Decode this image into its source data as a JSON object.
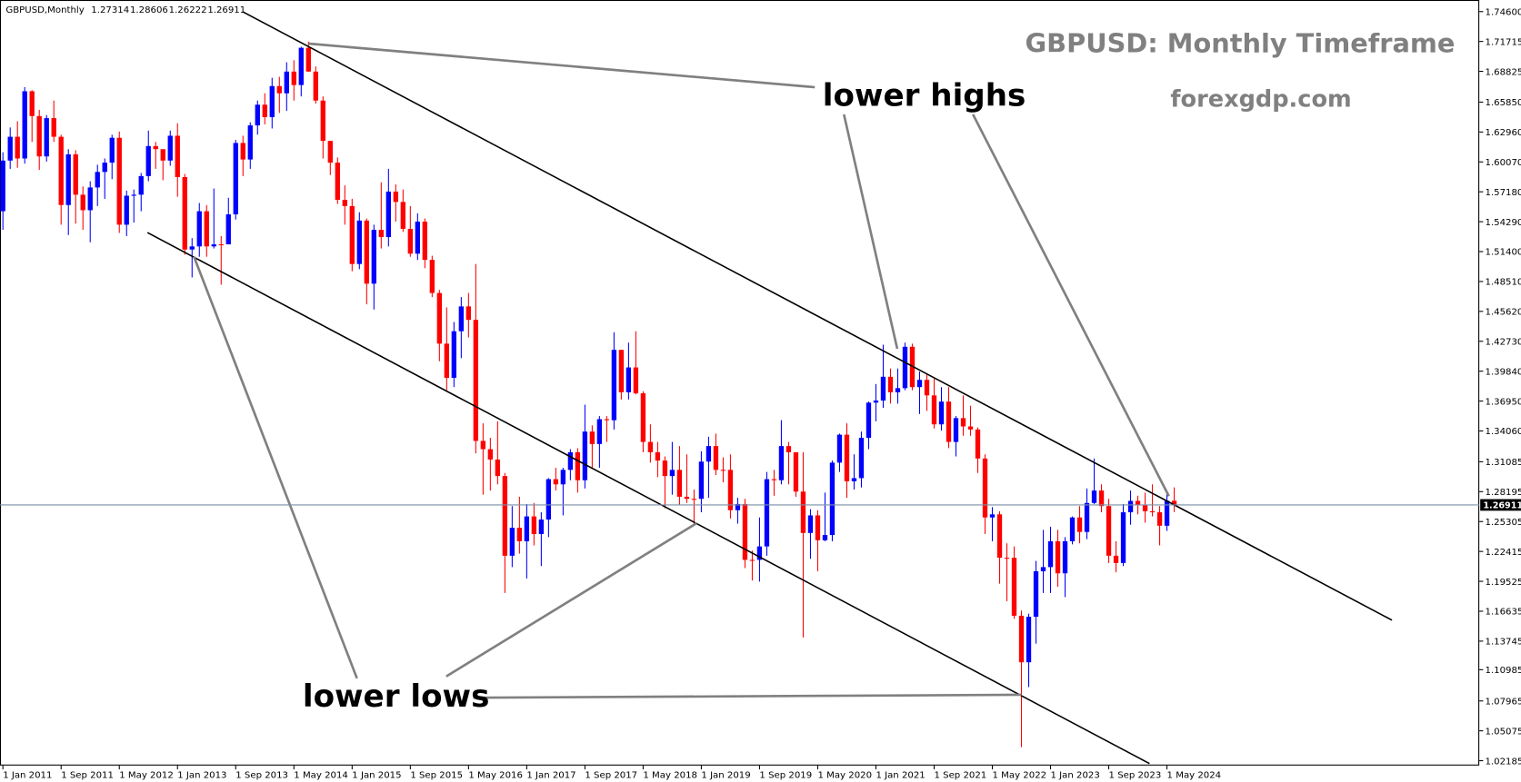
{
  "chart_data": {
    "type": "candlestick",
    "header": "GBPUSD,Monthly",
    "title": "GBPUSD: Monthly Timeframe",
    "subtitle": "forexgdp.com",
    "annotations": [
      "lower highs",
      "lower lows"
    ],
    "up_color": "#0000ff",
    "down_color": "#ff0000",
    "price_line_color": "#7a8fa6",
    "ylim": [
      1.0172,
      1.7572
    ],
    "yticks": [
      {
        "value": 1.746,
        "label": "1.74600"
      },
      {
        "value": 1.71715,
        "label": "1.71715"
      },
      {
        "value": 1.68825,
        "label": "1.68825"
      },
      {
        "value": 1.6585,
        "label": "1.65850"
      },
      {
        "value": 1.6296,
        "label": "1.62960"
      },
      {
        "value": 1.6007,
        "label": "1.60070"
      },
      {
        "value": 1.5718,
        "label": "1.57180"
      },
      {
        "value": 1.5429,
        "label": "1.54290"
      },
      {
        "value": 1.514,
        "label": "1.51400"
      },
      {
        "value": 1.4851,
        "label": "1.48510"
      },
      {
        "value": 1.4562,
        "label": "1.45620"
      },
      {
        "value": 1.4273,
        "label": "1.42730"
      },
      {
        "value": 1.3984,
        "label": "1.39840"
      },
      {
        "value": 1.3695,
        "label": "1.36950"
      },
      {
        "value": 1.3406,
        "label": "1.34060"
      },
      {
        "value": 1.31085,
        "label": "1.31085"
      },
      {
        "value": 1.28195,
        "label": "1.28195"
      },
      {
        "value": 1.25305,
        "label": "1.25305"
      },
      {
        "value": 1.22415,
        "label": "1.22415"
      },
      {
        "value": 1.19525,
        "label": "1.19525"
      },
      {
        "value": 1.16635,
        "label": "1.16635"
      },
      {
        "value": 1.13745,
        "label": "1.13745"
      },
      {
        "value": 1.10985,
        "label": "1.10985"
      },
      {
        "value": 1.07965,
        "label": "1.07965"
      },
      {
        "value": 1.05075,
        "label": "1.05075"
      },
      {
        "value": 1.02185,
        "label": "1.02185"
      }
    ],
    "categories": [
      "1 Jan 2011",
      null,
      null,
      null,
      null,
      null,
      null,
      null,
      "1 Sep 2011",
      null,
      null,
      null,
      null,
      null,
      null,
      null,
      "1 May 2012",
      null,
      null,
      null,
      null,
      null,
      null,
      null,
      "1 Jan 2013",
      null,
      null,
      null,
      null,
      null,
      null,
      null,
      "1 Sep 2013",
      null,
      null,
      null,
      null,
      null,
      null,
      null,
      "1 May 2014",
      null,
      null,
      null,
      null,
      null,
      null,
      null,
      "1 Jan 2015",
      null,
      null,
      null,
      null,
      null,
      null,
      null,
      "1 Sep 2015",
      null,
      null,
      null,
      null,
      null,
      null,
      null,
      "1 May 2016",
      null,
      null,
      null,
      null,
      null,
      null,
      null,
      "1 Jan 2017",
      null,
      null,
      null,
      null,
      null,
      null,
      null,
      "1 Sep 2017",
      null,
      null,
      null,
      null,
      null,
      null,
      null,
      "1 May 2018",
      null,
      null,
      null,
      null,
      null,
      null,
      null,
      "1 Jan 2019",
      null,
      null,
      null,
      null,
      null,
      null,
      null,
      "1 Sep 2019",
      null,
      null,
      null,
      null,
      null,
      null,
      null,
      "1 May 2020",
      null,
      null,
      null,
      null,
      null,
      null,
      null,
      "1 Jan 2021",
      null,
      null,
      null,
      null,
      null,
      null,
      null,
      "1 Sep 2021",
      null,
      null,
      null,
      null,
      null,
      null,
      null,
      "1 May 2022",
      null,
      null,
      null,
      null,
      null,
      null,
      null,
      "1 Jan 2023",
      null,
      null,
      null,
      null,
      null,
      null,
      null,
      "1 Sep 2023",
      null,
      null,
      null,
      null,
      null,
      null,
      null,
      "1 May 2024",
      null
    ],
    "open": [
      1.553,
      1.602,
      1.625,
      1.604,
      1.669,
      1.645,
      1.606,
      1.643,
      1.625,
      1.559,
      1.608,
      1.569,
      1.554,
      1.576,
      1.591,
      1.6,
      1.624,
      1.54,
      1.568,
      1.569,
      1.587,
      1.616,
      1.613,
      1.602,
      1.626,
      1.586,
      1.516,
      1.519,
      1.553,
      1.519,
      1.521,
      1.521,
      1.55,
      1.619,
      1.603,
      1.636,
      1.656,
      1.644,
      1.674,
      1.667,
      1.688,
      1.675,
      1.711,
      1.688,
      1.66,
      1.621,
      1.6,
      1.564,
      1.558,
      1.502,
      1.544,
      1.483,
      1.535,
      1.528,
      1.572,
      1.562,
      1.536,
      1.512,
      1.543,
      1.506,
      1.474,
      1.425,
      1.392,
      1.437,
      1.461,
      1.448,
      1.331,
      1.323,
      1.313,
      1.297,
      1.22,
      1.247,
      1.234,
      1.258,
      1.241,
      1.255,
      1.294,
      1.289,
      1.303,
      1.32,
      1.293,
      1.34,
      1.328,
      1.352,
      1.351,
      1.419,
      1.378,
      1.402,
      1.377,
      1.33,
      1.32,
      1.312,
      1.297,
      1.303,
      1.277,
      1.275,
      1.275,
      1.311,
      1.326,
      1.303,
      1.303,
      1.264,
      1.27,
      1.216,
      1.216,
      1.229,
      1.294,
      1.293,
      1.326,
      1.32,
      1.282,
      1.242,
      1.259,
      1.235,
      1.24,
      1.31,
      1.337,
      1.292,
      1.295,
      1.334,
      1.368,
      1.37,
      1.393,
      1.378,
      1.382,
      1.422,
      1.383,
      1.39,
      1.375,
      1.347,
      1.369,
      1.33,
      1.353,
      1.345,
      1.342,
      1.314,
      1.257,
      1.26,
      1.218,
      1.218,
      1.162,
      1.117,
      1.161,
      1.205,
      1.209,
      1.234,
      1.203,
      1.234,
      1.257,
      1.243,
      1.271,
      1.283,
      1.268,
      1.22,
      1.213,
      1.262,
      1.273,
      1.269,
      1.263,
      1.262,
      1.249,
      1.27314
    ],
    "high": [
      1.61,
      1.634,
      1.64,
      1.673,
      1.67,
      1.651,
      1.646,
      1.66,
      1.627,
      1.613,
      1.612,
      1.577,
      1.582,
      1.598,
      1.604,
      1.627,
      1.63,
      1.573,
      1.574,
      1.59,
      1.631,
      1.62,
      1.612,
      1.631,
      1.638,
      1.589,
      1.527,
      1.561,
      1.559,
      1.575,
      1.529,
      1.566,
      1.622,
      1.626,
      1.639,
      1.66,
      1.667,
      1.682,
      1.683,
      1.697,
      1.699,
      1.712,
      1.717,
      1.693,
      1.664,
      1.621,
      1.605,
      1.578,
      1.565,
      1.552,
      1.546,
      1.54,
      1.581,
      1.594,
      1.579,
      1.574,
      1.558,
      1.551,
      1.546,
      1.51,
      1.477,
      1.46,
      1.446,
      1.47,
      1.474,
      1.502,
      1.348,
      1.334,
      1.35,
      1.3,
      1.268,
      1.277,
      1.27,
      1.271,
      1.262,
      1.295,
      1.305,
      1.305,
      1.323,
      1.324,
      1.366,
      1.346,
      1.355,
      1.355,
      1.436,
      1.419,
      1.426,
      1.437,
      1.379,
      1.347,
      1.33,
      1.316,
      1.33,
      1.326,
      1.318,
      1.284,
      1.321,
      1.335,
      1.338,
      1.315,
      1.318,
      1.276,
      1.275,
      1.225,
      1.257,
      1.301,
      1.303,
      1.351,
      1.33,
      1.32,
      1.32,
      1.265,
      1.264,
      1.281,
      1.312,
      1.338,
      1.348,
      1.318,
      1.34,
      1.369,
      1.386,
      1.424,
      1.401,
      1.401,
      1.426,
      1.425,
      1.398,
      1.395,
      1.391,
      1.383,
      1.383,
      1.355,
      1.375,
      1.365,
      1.344,
      1.318,
      1.267,
      1.263,
      1.232,
      1.229,
      1.167,
      1.164,
      1.215,
      1.245,
      1.248,
      1.245,
      1.238,
      1.258,
      1.268,
      1.285,
      1.314,
      1.289,
      1.275,
      1.234,
      1.27,
      1.283,
      1.278,
      1.281,
      1.289,
      1.268,
      1.281,
      1.28606
    ],
    "low": [
      1.535,
      1.594,
      1.595,
      1.599,
      1.62,
      1.593,
      1.601,
      1.62,
      1.54,
      1.53,
      1.541,
      1.535,
      1.523,
      1.558,
      1.565,
      1.584,
      1.532,
      1.529,
      1.542,
      1.553,
      1.582,
      1.594,
      1.583,
      1.597,
      1.567,
      1.511,
      1.489,
      1.509,
      1.509,
      1.517,
      1.482,
      1.521,
      1.545,
      1.587,
      1.594,
      1.627,
      1.637,
      1.633,
      1.648,
      1.65,
      1.66,
      1.664,
      1.688,
      1.657,
      1.604,
      1.588,
      1.56,
      1.54,
      1.495,
      1.497,
      1.463,
      1.458,
      1.517,
      1.519,
      1.543,
      1.533,
      1.509,
      1.506,
      1.498,
      1.47,
      1.408,
      1.38,
      1.383,
      1.411,
      1.431,
      1.319,
      1.279,
      1.283,
      1.289,
      1.184,
      1.209,
      1.222,
      1.198,
      1.23,
      1.21,
      1.238,
      1.283,
      1.259,
      1.293,
      1.281,
      1.285,
      1.305,
      1.305,
      1.33,
      1.342,
      1.371,
      1.371,
      1.376,
      1.32,
      1.31,
      1.296,
      1.266,
      1.279,
      1.269,
      1.271,
      1.249,
      1.262,
      1.276,
      1.298,
      1.291,
      1.256,
      1.251,
      1.208,
      1.196,
      1.195,
      1.22,
      1.278,
      1.289,
      1.289,
      1.277,
      1.141,
      1.217,
      1.205,
      1.234,
      1.234,
      1.301,
      1.276,
      1.284,
      1.286,
      1.323,
      1.35,
      1.363,
      1.367,
      1.367,
      1.38,
      1.38,
      1.357,
      1.36,
      1.343,
      1.341,
      1.324,
      1.316,
      1.336,
      1.336,
      1.3,
      1.241,
      1.234,
      1.193,
      1.176,
      1.159,
      1.035,
      1.093,
      1.135,
      1.184,
      1.184,
      1.19,
      1.18,
      1.231,
      1.232,
      1.236,
      1.27,
      1.262,
      1.213,
      1.204,
      1.21,
      1.25,
      1.26,
      1.252,
      1.258,
      1.23,
      1.244,
      1.26222
    ],
    "close": [
      1.602,
      1.625,
      1.604,
      1.669,
      1.645,
      1.606,
      1.643,
      1.625,
      1.559,
      1.608,
      1.569,
      1.554,
      1.576,
      1.591,
      1.6,
      1.624,
      1.54,
      1.568,
      1.569,
      1.587,
      1.616,
      1.613,
      1.602,
      1.626,
      1.586,
      1.516,
      1.519,
      1.553,
      1.519,
      1.521,
      1.521,
      1.55,
      1.619,
      1.603,
      1.636,
      1.656,
      1.644,
      1.674,
      1.667,
      1.688,
      1.675,
      1.711,
      1.688,
      1.66,
      1.621,
      1.6,
      1.564,
      1.558,
      1.502,
      1.544,
      1.483,
      1.535,
      1.528,
      1.572,
      1.562,
      1.536,
      1.512,
      1.543,
      1.506,
      1.474,
      1.425,
      1.392,
      1.437,
      1.461,
      1.448,
      1.331,
      1.323,
      1.313,
      1.297,
      1.22,
      1.247,
      1.234,
      1.258,
      1.241,
      1.255,
      1.294,
      1.289,
      1.303,
      1.32,
      1.293,
      1.34,
      1.328,
      1.352,
      1.351,
      1.419,
      1.378,
      1.402,
      1.377,
      1.33,
      1.32,
      1.312,
      1.297,
      1.303,
      1.277,
      1.275,
      1.275,
      1.311,
      1.326,
      1.303,
      1.303,
      1.264,
      1.27,
      1.216,
      1.216,
      1.229,
      1.294,
      1.293,
      1.326,
      1.32,
      1.282,
      1.242,
      1.259,
      1.235,
      1.24,
      1.31,
      1.337,
      1.292,
      1.295,
      1.334,
      1.368,
      1.37,
      1.393,
      1.378,
      1.382,
      1.422,
      1.383,
      1.39,
      1.375,
      1.347,
      1.369,
      1.33,
      1.353,
      1.345,
      1.342,
      1.314,
      1.257,
      1.26,
      1.218,
      1.218,
      1.162,
      1.117,
      1.161,
      1.205,
      1.209,
      1.234,
      1.203,
      1.234,
      1.257,
      1.243,
      1.271,
      1.283,
      1.268,
      1.22,
      1.213,
      1.262,
      1.273,
      1.269,
      1.263,
      1.262,
      1.249,
      1.27314,
      1.26911
    ]
  }
}
